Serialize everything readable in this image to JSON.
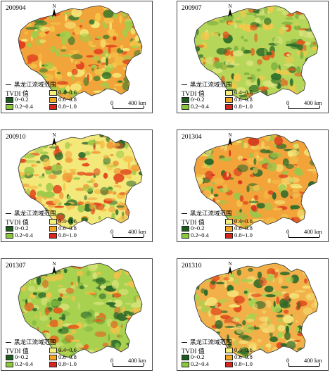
{
  "legend": {
    "boundary_label": "黑龙江流域范围",
    "title": "TVDI 值",
    "classes": [
      {
        "label": "0~0.2",
        "color": "#1e5a1e"
      },
      {
        "label": "0.2~0.4",
        "color": "#8cc63f"
      },
      {
        "label": "0.4~0.6",
        "color": "#f3ef7a"
      },
      {
        "label": "0.6~0.8",
        "color": "#f5a623"
      },
      {
        "label": "0.8~1.0",
        "color": "#d7261e"
      }
    ]
  },
  "scale": {
    "zero": "0",
    "distance": "400 km"
  },
  "north_label": "N",
  "panels": [
    {
      "label": "200904",
      "base": "#f0a43a",
      "mix": [
        "#f5c84a",
        "#e2401e",
        "#f6ea7a",
        "#3a7a2a",
        "#9fcf4a"
      ]
    },
    {
      "label": "200907",
      "base": "#b6d65a",
      "mix": [
        "#d9e37a",
        "#f3c84a",
        "#7fb340",
        "#e55a1e",
        "#2f6e2a"
      ]
    },
    {
      "label": "200910",
      "base": "#f3e87a",
      "mix": [
        "#f5c14a",
        "#2f6b2a",
        "#9ec94a",
        "#e2481e",
        "#f0a03a"
      ]
    },
    {
      "label": "201304",
      "base": "#f2a43a",
      "mix": [
        "#f3c04a",
        "#d9341e",
        "#f3e77a",
        "#2f6b2a",
        "#98c84a"
      ]
    },
    {
      "label": "201307",
      "base": "#a9d150",
      "mix": [
        "#d6e278",
        "#f2c24a",
        "#7db43e",
        "#e0621e",
        "#2d6a2a"
      ]
    },
    {
      "label": "201310",
      "base": "#f2b048",
      "mix": [
        "#f3d46a",
        "#e04a1e",
        "#a9d150",
        "#2f6b2a",
        "#f5e47a"
      ]
    }
  ]
}
